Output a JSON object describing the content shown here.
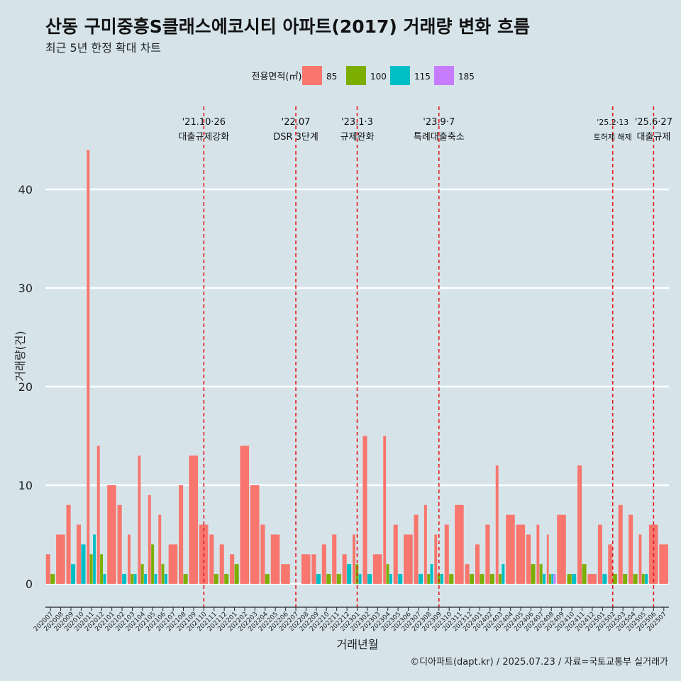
{
  "title": "산동 구미중흥S클래스에코시티 아파트(2017) 거래량 변화 흐름",
  "subtitle": "최근 5년 한정 확대 차트",
  "caption": "©디아파트(dapt.kr) / 2025.07.23 / 자료=국토교통부 실거래가",
  "colors": {
    "background": "#d6e4ea",
    "grid": "#ffffff",
    "event_line": "#e31a1c",
    "85": "#f8766d",
    "100": "#7cae00",
    "115": "#00bfc4",
    "185": "#c77cff"
  },
  "chart_data": {
    "type": "bar",
    "xlabel": "거래년월",
    "ylabel": "거래량(건)",
    "ylim": [
      0,
      44
    ],
    "yticks": [
      0,
      10,
      20,
      30,
      40
    ],
    "grid": true,
    "legend": {
      "title": "전용면적(㎡)",
      "position": "top",
      "entries": [
        "85",
        "100",
        "115",
        "185"
      ]
    },
    "categories": [
      "202007",
      "202008",
      "202009",
      "202010",
      "202011",
      "202012",
      "202101",
      "202102",
      "202103",
      "202104",
      "202105",
      "202106",
      "202107",
      "202108",
      "202109",
      "202110",
      "202111",
      "202112",
      "202201",
      "202202",
      "202203",
      "202204",
      "202205",
      "202206",
      "202207",
      "202208",
      "202209",
      "202210",
      "202211",
      "202212",
      "202301",
      "202302",
      "202303",
      "202304",
      "202305",
      "202306",
      "202307",
      "202308",
      "202309",
      "202310",
      "202311",
      "202312",
      "202401",
      "202402",
      "202403",
      "202404",
      "202405",
      "202406",
      "202407",
      "202408",
      "202409",
      "202410",
      "202411",
      "202412",
      "202501",
      "202502",
      "202503",
      "202504",
      "202505",
      "202506",
      "202507"
    ],
    "series": [
      {
        "name": "85",
        "values": [
          3,
          5,
          8,
          6,
          44,
          14,
          10,
          8,
          5,
          13,
          9,
          7,
          4,
          10,
          13,
          6,
          5,
          4,
          3,
          14,
          10,
          6,
          5,
          2,
          0,
          3,
          3,
          4,
          5,
          3,
          5,
          15,
          3,
          15,
          6,
          5,
          7,
          8,
          5,
          6,
          8,
          2,
          4,
          6,
          12,
          7,
          6,
          5,
          6,
          5,
          7,
          0,
          12,
          1,
          6,
          4,
          8,
          7,
          5,
          6,
          4
        ]
      },
      {
        "name": "100",
        "values": [
          1,
          0,
          0,
          0,
          3,
          3,
          0,
          0,
          1,
          2,
          4,
          2,
          0,
          1,
          0,
          0,
          1,
          1,
          2,
          0,
          0,
          1,
          0,
          0,
          0,
          0,
          0,
          1,
          1,
          0,
          2,
          0,
          0,
          2,
          0,
          0,
          0,
          1,
          1,
          1,
          0,
          1,
          1,
          1,
          1,
          0,
          0,
          2,
          2,
          1,
          0,
          1,
          2,
          0,
          0,
          1,
          1,
          1,
          1,
          0,
          0
        ]
      },
      {
        "name": "115",
        "values": [
          0,
          0,
          2,
          4,
          5,
          1,
          0,
          1,
          1,
          1,
          1,
          1,
          0,
          0,
          0,
          0,
          0,
          0,
          0,
          0,
          0,
          0,
          0,
          0,
          0,
          0,
          1,
          0,
          0,
          2,
          1,
          1,
          0,
          1,
          1,
          0,
          1,
          2,
          1,
          0,
          0,
          0,
          0,
          0,
          2,
          0,
          0,
          0,
          1,
          1,
          0,
          1,
          0,
          0,
          1,
          0,
          0,
          0,
          1,
          0,
          0
        ]
      },
      {
        "name": "185",
        "values": [
          0,
          0,
          0,
          0,
          0,
          0,
          0,
          0,
          0,
          0,
          0,
          0,
          0,
          0,
          0,
          0,
          0,
          0,
          0,
          0,
          0,
          0,
          0,
          0,
          0,
          0,
          0,
          0,
          0,
          0,
          0,
          0,
          0,
          0,
          0,
          0,
          0,
          0,
          0,
          0,
          0,
          0,
          0,
          0,
          0,
          0,
          0,
          0,
          0,
          1,
          0,
          0,
          0,
          0,
          0,
          0,
          0,
          0,
          0,
          0,
          0
        ]
      }
    ],
    "annotations": [
      {
        "date": "'21.10·26",
        "label": "대출규제강화",
        "at": "202110"
      },
      {
        "date": "'22.07",
        "label": "DSR 3단계",
        "at": "202207"
      },
      {
        "date": "'23.1·3",
        "label": "규제완화",
        "at": "202301"
      },
      {
        "date": "'23.9·7",
        "label": "특례대출축소",
        "at": "202309"
      },
      {
        "date": "'25.2·13",
        "label": "토허제 해제",
        "at": "202502"
      },
      {
        "date": "'25.6·27",
        "label": "대출규제",
        "at": "202506"
      }
    ]
  }
}
